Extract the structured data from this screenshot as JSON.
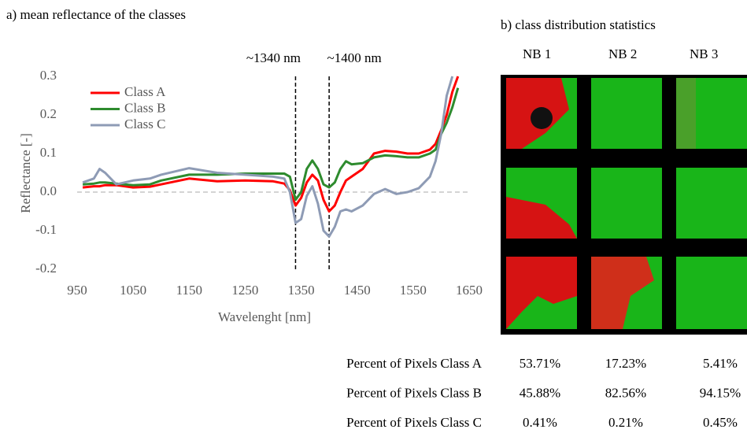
{
  "chart_data": {
    "type": "line",
    "title": "a) mean reflectance of the classes",
    "x_label": "Wavelenght [nm]",
    "y_label": "Reflectance [-]",
    "x": [
      960,
      980,
      990,
      1000,
      1020,
      1050,
      1080,
      1100,
      1150,
      1200,
      1250,
      1300,
      1320,
      1330,
      1340,
      1350,
      1360,
      1370,
      1380,
      1390,
      1400,
      1410,
      1420,
      1430,
      1440,
      1460,
      1480,
      1500,
      1520,
      1540,
      1560,
      1580,
      1590,
      1600,
      1610,
      1620,
      1630
    ],
    "series": [
      {
        "name": "Class A",
        "color": "#ff0000",
        "values": [
          0.012,
          0.015,
          0.015,
          0.018,
          0.018,
          0.012,
          0.014,
          0.02,
          0.035,
          0.028,
          0.03,
          0.028,
          0.022,
          0.005,
          -0.035,
          -0.015,
          0.025,
          0.045,
          0.03,
          -0.02,
          -0.05,
          -0.035,
          0.0,
          0.03,
          0.04,
          0.06,
          0.1,
          0.107,
          0.105,
          0.1,
          0.1,
          0.11,
          0.125,
          0.16,
          0.2,
          0.26,
          0.3
        ]
      },
      {
        "name": "Class B",
        "color": "#2e8b2e",
        "values": [
          0.02,
          0.022,
          0.025,
          0.025,
          0.022,
          0.018,
          0.02,
          0.03,
          0.045,
          0.045,
          0.048,
          0.048,
          0.048,
          0.04,
          -0.02,
          0.0,
          0.06,
          0.082,
          0.06,
          0.02,
          0.012,
          0.025,
          0.06,
          0.08,
          0.072,
          0.075,
          0.09,
          0.095,
          0.093,
          0.09,
          0.09,
          0.1,
          0.11,
          0.15,
          0.18,
          0.22,
          0.27
        ]
      },
      {
        "name": "Class C",
        "color": "#8e9bb5",
        "values": [
          0.025,
          0.035,
          0.06,
          0.05,
          0.02,
          0.03,
          0.035,
          0.045,
          0.062,
          0.05,
          0.045,
          0.04,
          0.035,
          0.0,
          -0.08,
          -0.07,
          -0.01,
          0.015,
          -0.03,
          -0.1,
          -0.115,
          -0.09,
          -0.05,
          -0.045,
          -0.05,
          -0.035,
          -0.005,
          0.008,
          -0.005,
          0.0,
          0.01,
          0.04,
          0.08,
          0.15,
          0.25,
          0.3,
          null
        ]
      }
    ],
    "xlim": [
      950,
      1650
    ],
    "xticks": [
      950,
      1050,
      1150,
      1250,
      1350,
      1450,
      1550,
      1650
    ],
    "ylim": [
      -0.2,
      0.3
    ],
    "yticks": [
      0.3,
      0.2,
      0.1,
      {
        "value": 0,
        "label": "0.0"
      },
      -0.1,
      -0.2
    ],
    "zero_line": true,
    "legend": "upper left",
    "annotations": [
      {
        "label": "~1340 nm",
        "x": 1340
      },
      {
        "label": "~1400 nm",
        "x": 1400
      }
    ]
  },
  "panel_b": {
    "title": "b) class distribution statistics",
    "columns": [
      "NB 1",
      "NB 2",
      "NB 3"
    ],
    "table": {
      "rows": [
        {
          "label": "Percent of Pixels Class A",
          "values": [
            "53.71%",
            "17.23%",
            "5.41%"
          ]
        },
        {
          "label": "Percent of Pixels Class B",
          "values": [
            "45.88%",
            "82.56%",
            "94.15%"
          ]
        },
        {
          "label": "Percent of Pixels Class C",
          "values": [
            "0.41%",
            "0.21%",
            "0.45%"
          ]
        }
      ]
    }
  }
}
